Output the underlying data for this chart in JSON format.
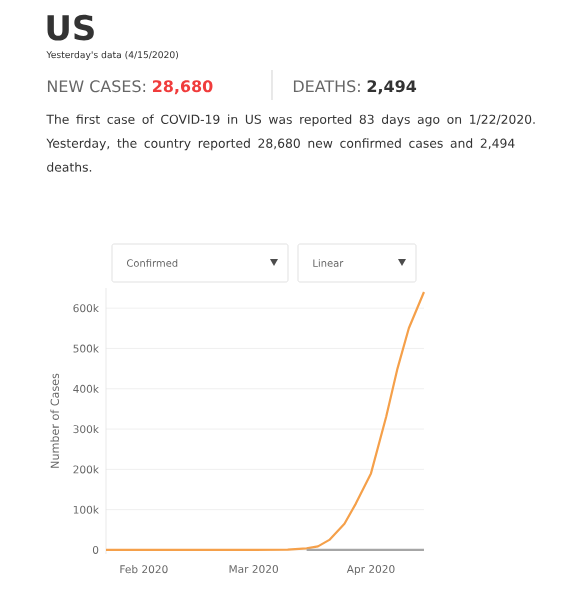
{
  "chart_data": {
    "type": "line",
    "title": "US",
    "subtitle": "Yesterday's data (4/15/2020)",
    "annotations": [
      "NEW CASES:",
      "28,680",
      "DEATHS:",
      "2,494",
      "The first case of COVID-19 in US was reported 83 days ago on 1/22/2020. Yesterday, the country reported 28,680 new confirmed cases and 2,494 deaths.",
      "Confirmed",
      "Linear"
    ],
    "ylabel": "Number of Cases",
    "x": [
      "2020-01-22",
      "2020-02-01",
      "2020-02-15",
      "2020-03-01",
      "2020-03-10",
      "2020-03-15",
      "2020-03-18",
      "2020-03-21",
      "2020-03-25",
      "2020-03-28",
      "2020-04-01",
      "2020-04-05",
      "2020-04-08",
      "2020-04-11",
      "2020-04-15"
    ],
    "series": [
      {
        "color": "#f5a04a",
        "values": [
          0,
          0,
          0,
          0,
          1000,
          4000,
          9000,
          25000,
          65000,
          115000,
          190000,
          330000,
          450000,
          550000,
          640000
        ]
      },
      {
        "color": "#a6a6a6",
        "x": [
          "2020-03-15",
          "2020-04-15"
        ],
        "values": [
          0,
          0
        ]
      }
    ],
    "xlim": [
      "2020-01-22",
      "2020-04-15"
    ],
    "xticks": [
      {
        "value": "2020-02-01",
        "label": "Feb 2020"
      },
      {
        "value": "2020-03-01",
        "label": "Mar 2020"
      },
      {
        "value": "2020-04-01",
        "label": "Apr 2020"
      }
    ],
    "ylim": [
      -10000,
      650000
    ],
    "yticks": [
      {
        "value": 0,
        "label": "0"
      },
      {
        "value": 100000,
        "label": "100k"
      },
      {
        "value": 200000,
        "label": "200k"
      },
      {
        "value": 300000,
        "label": "300k"
      },
      {
        "value": 400000,
        "label": "400k"
      },
      {
        "value": 500000,
        "label": "500k"
      },
      {
        "value": 600000,
        "label": "600k"
      }
    ],
    "grid": "y"
  }
}
